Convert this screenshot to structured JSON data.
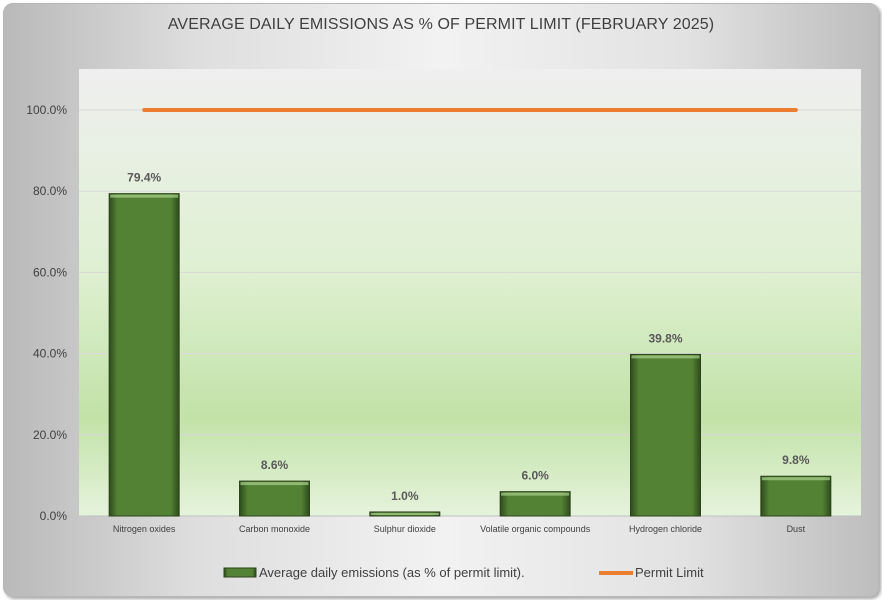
{
  "chart_data": {
    "type": "bar",
    "title": "AVERAGE DAILY EMISSIONS AS % OF PERMIT LIMIT (FEBRUARY 2025)",
    "categories": [
      "Nitrogen oxides",
      "Carbon monoxide",
      "Sulphur dioxide",
      "Volatile organic compounds",
      "Hydrogen chloride",
      "Dust"
    ],
    "series": [
      {
        "name": "Average daily emissions (as % of permit limit).",
        "kind": "bar",
        "color": "#548235",
        "values": [
          79.4,
          8.6,
          1.0,
          6.0,
          39.8,
          9.8
        ],
        "data_labels": [
          "79.4%",
          "8.6%",
          "1.0%",
          "6.0%",
          "39.8%",
          "9.8%"
        ]
      },
      {
        "name": "Permit Limit",
        "kind": "line",
        "color": "#ED7D31",
        "values": [
          100,
          100,
          100,
          100,
          100,
          100
        ]
      }
    ],
    "ylim": [
      0,
      100
    ],
    "yticks": [
      0,
      20,
      40,
      60,
      80,
      100
    ],
    "ytick_labels": [
      "0.0%",
      "20.0%",
      "40.0%",
      "60.0%",
      "80.0%",
      "100.0%"
    ],
    "xlabel": "",
    "ylabel": "",
    "grid": true,
    "legend_position": "bottom"
  }
}
